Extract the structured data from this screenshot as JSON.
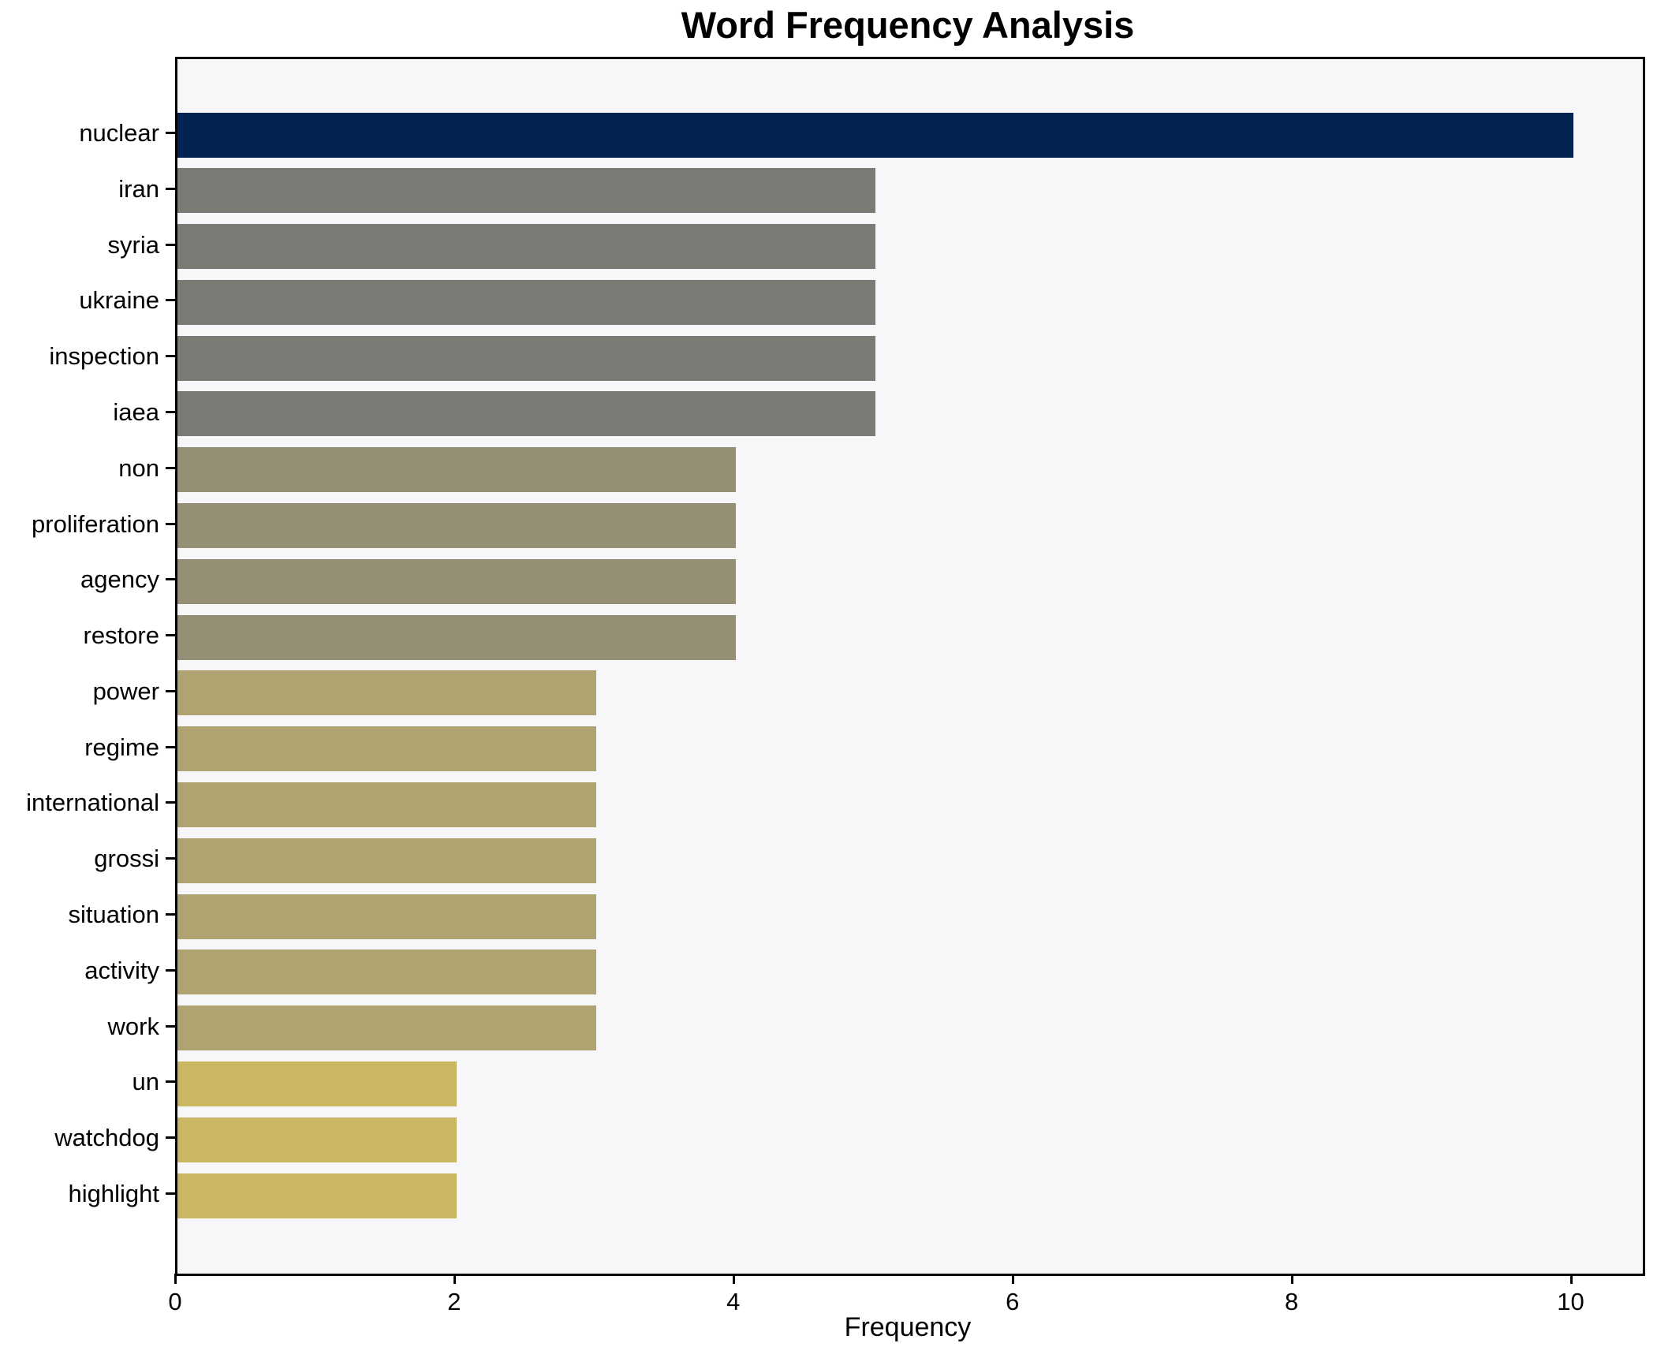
{
  "chart_data": {
    "type": "bar",
    "orientation": "horizontal",
    "title": "Word Frequency Analysis",
    "xlabel": "Frequency",
    "ylabel": "",
    "categories": [
      "nuclear",
      "iran",
      "syria",
      "ukraine",
      "inspection",
      "iaea",
      "non",
      "proliferation",
      "agency",
      "restore",
      "power",
      "regime",
      "international",
      "grossi",
      "situation",
      "activity",
      "work",
      "un",
      "watchdog",
      "highlight"
    ],
    "values": [
      10,
      5,
      5,
      5,
      5,
      5,
      4,
      4,
      4,
      4,
      3,
      3,
      3,
      3,
      3,
      3,
      3,
      2,
      2,
      2
    ],
    "bar_colors": [
      "#032450",
      "#7b7a74",
      "#7b7a74",
      "#7b7a74",
      "#7b7a74",
      "#7b7a74",
      "#948f75",
      "#948f75",
      "#948f75",
      "#948f75",
      "#aea371",
      "#aea371",
      "#aea371",
      "#aea371",
      "#aea371",
      "#aea371",
      "#aea371",
      "#c9b763",
      "#c9b763",
      "#c9b763"
    ],
    "xlim": [
      0,
      10.5
    ],
    "xticks": [
      0,
      2,
      4,
      6,
      8,
      10
    ],
    "grid": false,
    "legend": "none",
    "plot_bg": "#f7f7f9",
    "figure_bg": "#ffffff",
    "spine_color": "#000000",
    "text_color": "#000000"
  }
}
